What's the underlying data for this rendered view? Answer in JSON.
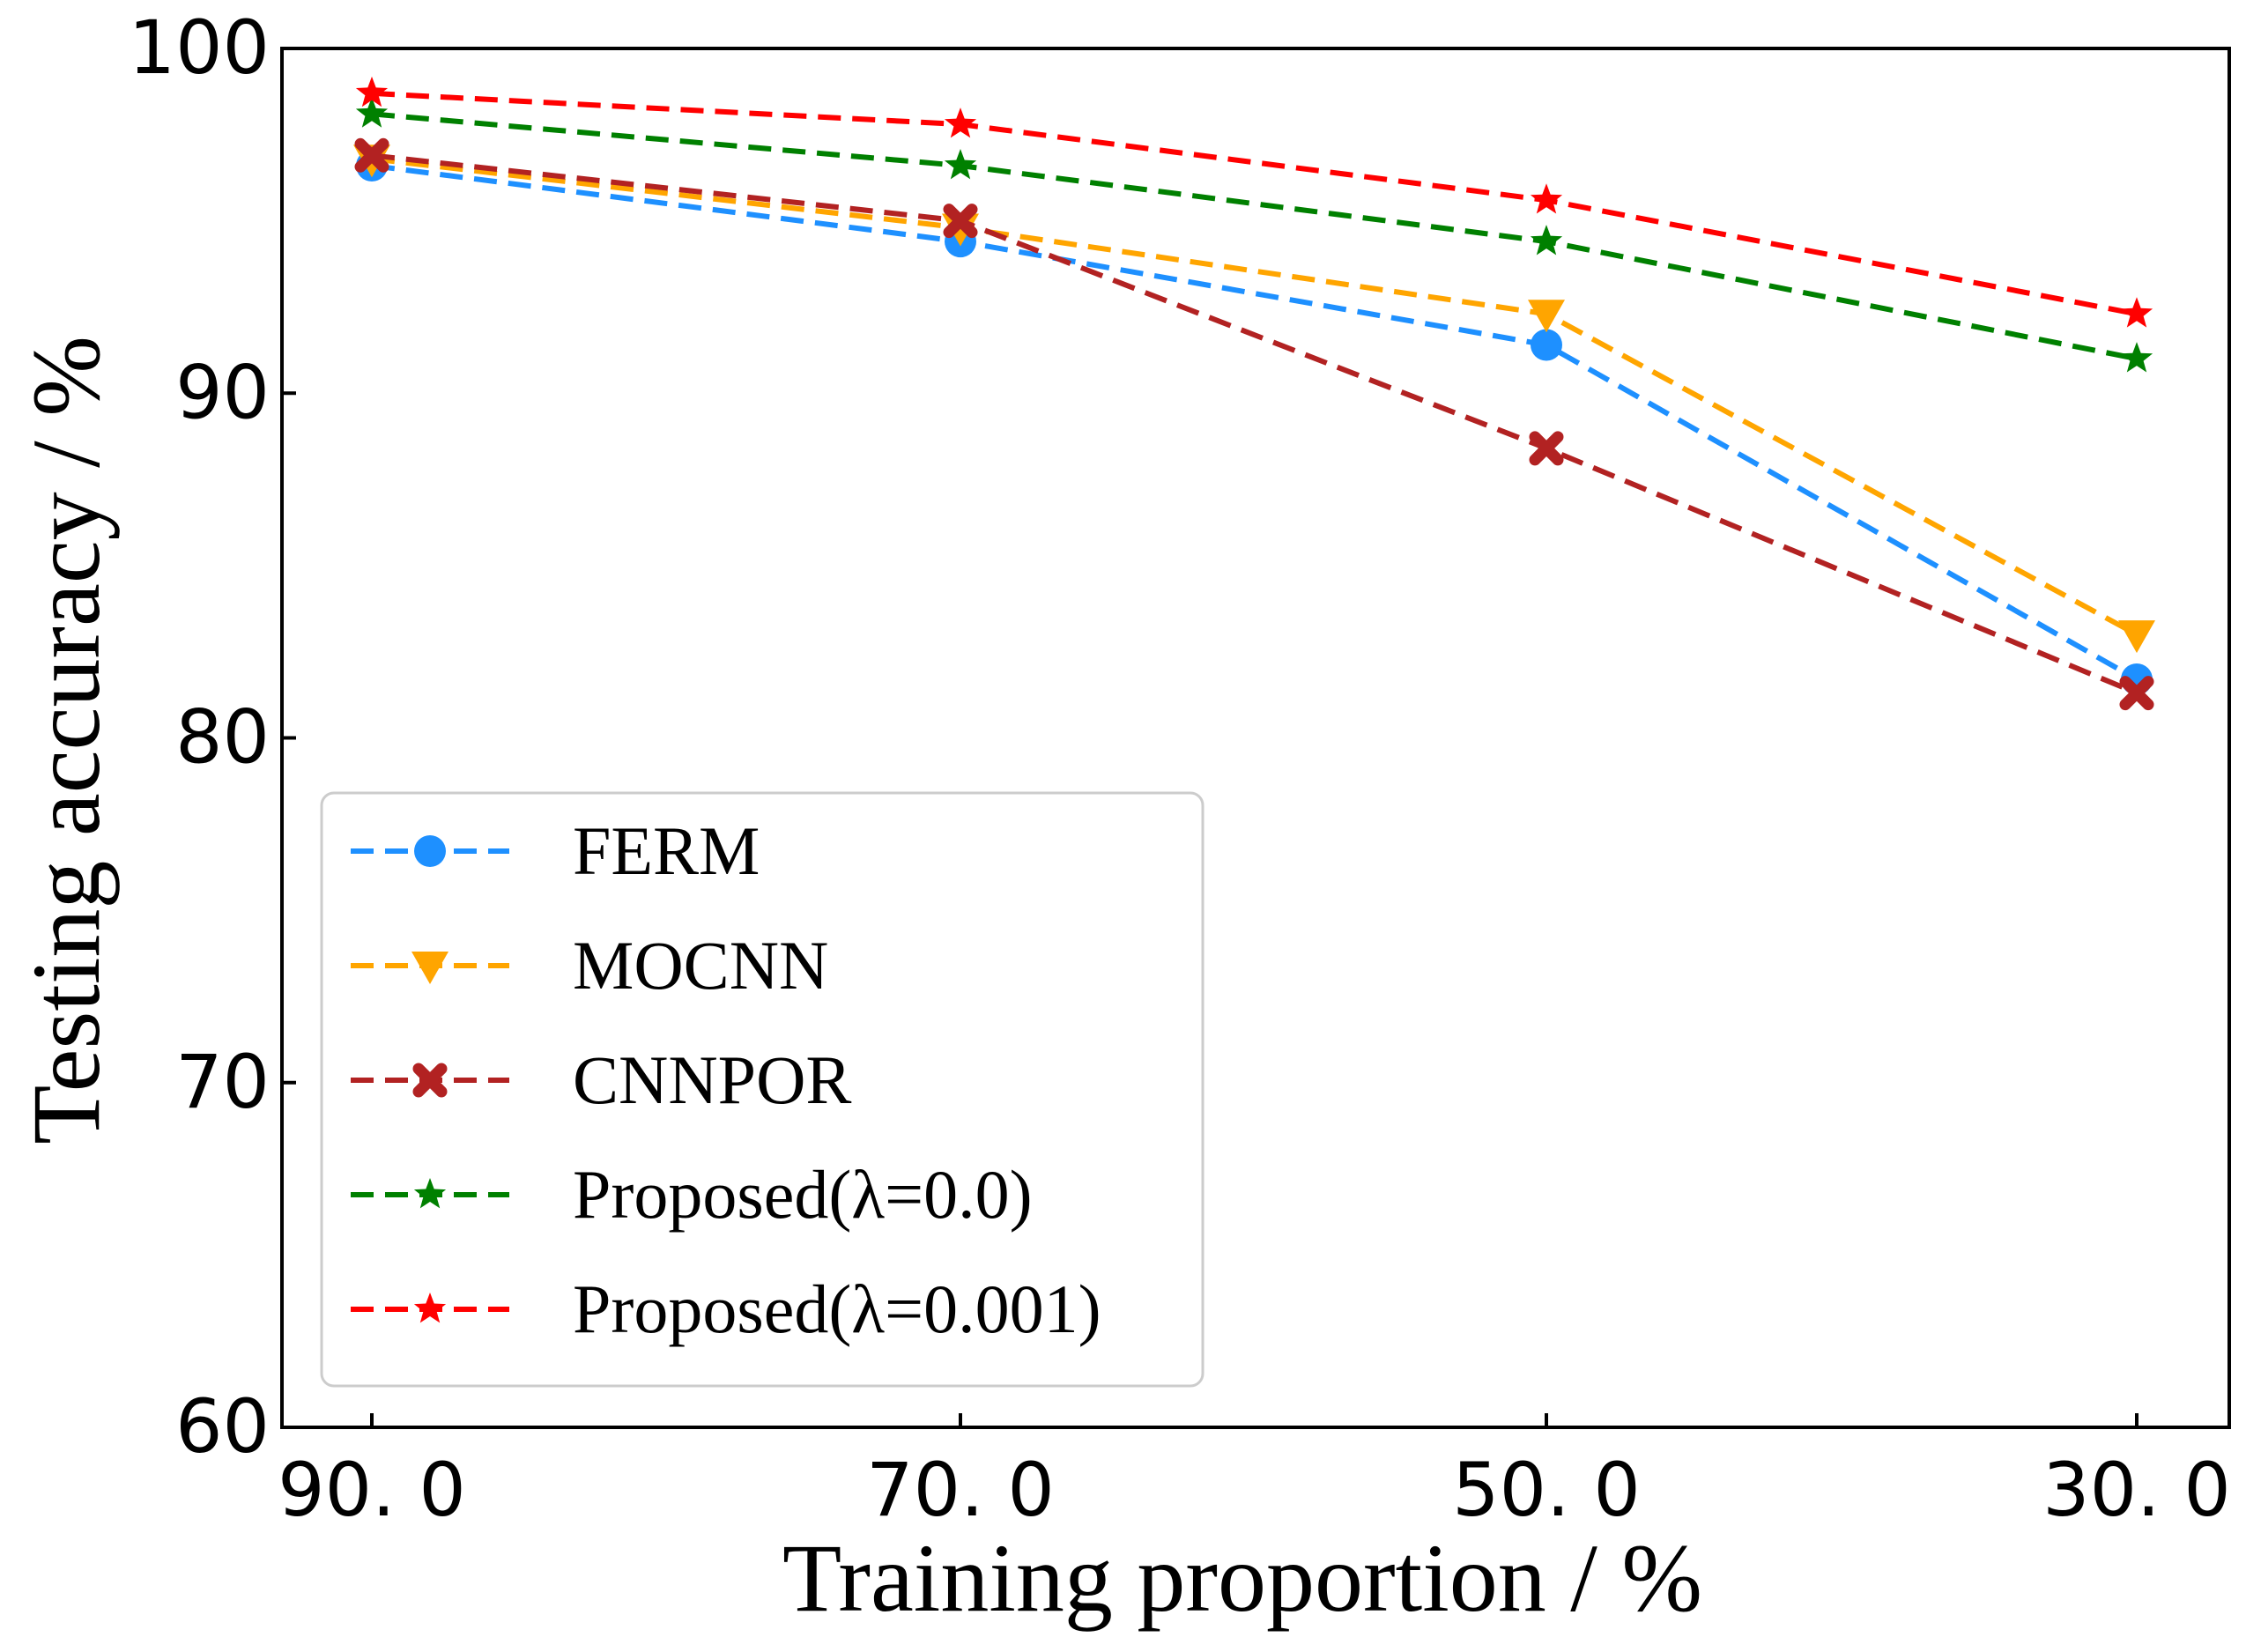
{
  "chart_data": {
    "type": "line",
    "title": "",
    "xlabel": "Training proportion / %",
    "ylabel": "Testing accuracy / %",
    "categories": [
      "90. 0",
      "70. 0",
      "50. 0",
      "30. 0"
    ],
    "ylim": [
      60,
      100
    ],
    "yticks": [
      "60",
      "70",
      "80",
      "90",
      "100"
    ],
    "grid": false,
    "legend_position": "lower-left",
    "series": [
      {
        "name": "FERM",
        "color": "#1e90ff",
        "marker": "circle",
        "values": [
          96.6,
          94.4,
          91.4,
          81.7
        ]
      },
      {
        "name": "MOCNN",
        "color": "#ffa500",
        "marker": "triangle-down",
        "values": [
          96.8,
          94.8,
          92.3,
          83.0
        ]
      },
      {
        "name": "CNNPOR",
        "color": "#b22222",
        "marker": "x",
        "values": [
          96.9,
          95.0,
          88.4,
          81.3
        ]
      },
      {
        "name": "Proposed(λ=0.0)",
        "color": "#008000",
        "marker": "star",
        "values": [
          98.1,
          96.6,
          94.4,
          91.0
        ]
      },
      {
        "name": "Proposed(λ=0.001)",
        "color": "#ff0000",
        "marker": "star",
        "values": [
          98.7,
          97.8,
          95.6,
          92.3
        ]
      }
    ]
  }
}
